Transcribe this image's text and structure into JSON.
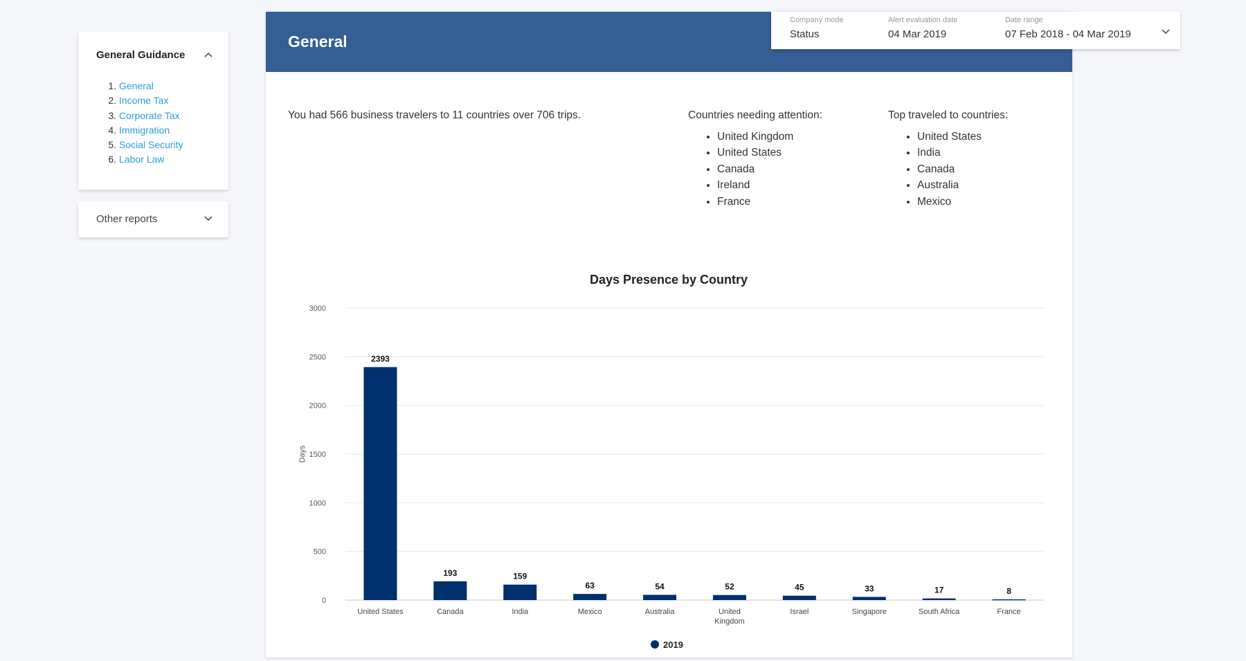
{
  "sidebar": {
    "guidance_title": "General Guidance",
    "guidance_items": [
      {
        "num": "1.",
        "label": "General"
      },
      {
        "num": "2.",
        "label": "Income Tax"
      },
      {
        "num": "3.",
        "label": "Corporate Tax"
      },
      {
        "num": "4.",
        "label": "Immigration"
      },
      {
        "num": "5.",
        "label": "Social Security"
      },
      {
        "num": "6.",
        "label": "Labor Law"
      }
    ],
    "other_title": "Other reports"
  },
  "header": {
    "title": "General"
  },
  "filters": {
    "company_mode_label": "Company mode",
    "company_mode_value": "Status",
    "alert_label": "Alert evaluation date",
    "alert_value": "04 Mar 2019",
    "range_label": "Date range",
    "range_value": "07 Feb 2018 - 04 Mar 2019"
  },
  "summary": {
    "text": "You had 566 business travelers to 11 countries over 706 trips.",
    "attention_title": "Countries needing attention:",
    "attention_list": [
      "United Kingdom",
      "United States",
      "Canada",
      "Ireland",
      "France"
    ],
    "top_title": "Top traveled to countries:",
    "top_list": [
      "United States",
      "India",
      "Canada",
      "Australia",
      "Mexico"
    ]
  },
  "colors": {
    "banner": "#345e94",
    "bar": "#00306e",
    "link": "#2a9fd6"
  },
  "chart_data": {
    "type": "bar",
    "title": "Days Presence by Country",
    "ylabel": "Days",
    "xlabel": "",
    "ylim": [
      0,
      3000
    ],
    "yticks": [
      0,
      500,
      1000,
      1500,
      2000,
      2500,
      3000
    ],
    "categories": [
      "United States",
      "Canada",
      "India",
      "Mexico",
      "Australia",
      "United Kingdom",
      "Israel",
      "Singapore",
      "South Africa",
      "France"
    ],
    "series": [
      {
        "name": "2019",
        "values": [
          2393,
          193,
          159,
          63,
          54,
          52,
          45,
          33,
          17,
          8
        ],
        "color": "#00306e"
      }
    ],
    "legend": "bottom-center",
    "grid": true
  }
}
